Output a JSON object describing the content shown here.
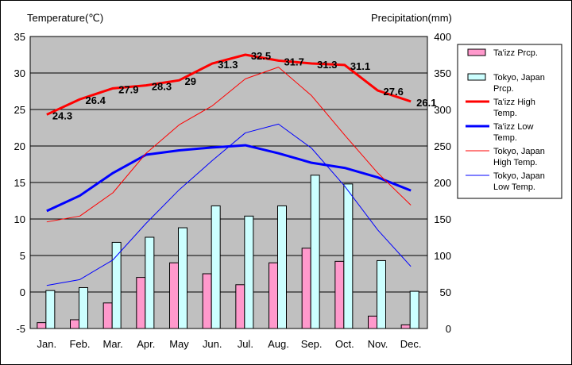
{
  "chart_data": {
    "type": "bar+line",
    "left_axis_title": "Temperature(℃)",
    "right_axis_title": "Precipitation(mm)",
    "categories": [
      "Jan.",
      "Feb.",
      "Mar.",
      "Apr.",
      "May",
      "Jun.",
      "Jul.",
      "Aug.",
      "Sep.",
      "Oct.",
      "Nov.",
      "Dec."
    ],
    "temperature_axis": {
      "min": -5,
      "max": 35,
      "ticks": [
        "-5",
        "0",
        "5",
        "10",
        "15",
        "20",
        "25",
        "30",
        "35"
      ]
    },
    "precipitation_axis": {
      "min": 0,
      "max": 400,
      "ticks": [
        "0",
        "50",
        "100",
        "150",
        "200",
        "250",
        "300",
        "350",
        "400"
      ]
    },
    "grid": true,
    "legend_position": "right",
    "bar_series": [
      {
        "name": "Ta'izz Prcp.",
        "color": "#ff99cc",
        "values": [
          8,
          12,
          35,
          70,
          90,
          75,
          60,
          90,
          110,
          92,
          17,
          5
        ]
      },
      {
        "name": "Tokyo, Japan Prcp.",
        "color": "#ccffff",
        "values": [
          52,
          56,
          118,
          125,
          138,
          168,
          154,
          168,
          210,
          198,
          93,
          51
        ]
      }
    ],
    "line_series": [
      {
        "name": "Ta'izz High Temp.",
        "color": "#ff0000",
        "width": 3,
        "values": [
          24.3,
          26.4,
          27.9,
          28.3,
          29,
          31.3,
          32.5,
          31.7,
          31.3,
          31.1,
          27.6,
          26.1
        ],
        "labels": [
          "24.3",
          "26.4",
          "27.9",
          "28.3",
          "29",
          "31.3",
          "32.5",
          "31.7",
          "31.3",
          "31.1",
          "27.6",
          "26.1"
        ]
      },
      {
        "name": "Ta'izz Low Temp.",
        "color": "#0000ff",
        "width": 3,
        "values": [
          11.1,
          13.2,
          16.3,
          18.8,
          19.4,
          19.8,
          20.1,
          19.0,
          17.7,
          17.0,
          15.7,
          13.9
        ]
      },
      {
        "name": "Tokyo, Japan High Temp.",
        "color": "#ff0000",
        "width": 1,
        "values": [
          9.6,
          10.4,
          13.6,
          19.0,
          22.9,
          25.5,
          29.2,
          30.8,
          26.9,
          21.5,
          16.3,
          11.9
        ]
      },
      {
        "name": "Tokyo, Japan Low Temp.",
        "color": "#0000ff",
        "width": 1,
        "values": [
          0.9,
          1.7,
          4.4,
          9.4,
          14.0,
          18.0,
          21.8,
          23.0,
          19.7,
          14.5,
          8.5,
          3.5
        ]
      }
    ],
    "legend_lines": [
      [
        "Ta'izz Prcp."
      ],
      [
        "Tokyo, Japan",
        "Prcp."
      ],
      [
        "Ta'izz High",
        "Temp."
      ],
      [
        "Ta'izz Low",
        "Temp."
      ],
      [
        "Tokyo, Japan",
        "High Temp."
      ],
      [
        "Tokyo, Japan",
        "Low Temp."
      ]
    ]
  }
}
